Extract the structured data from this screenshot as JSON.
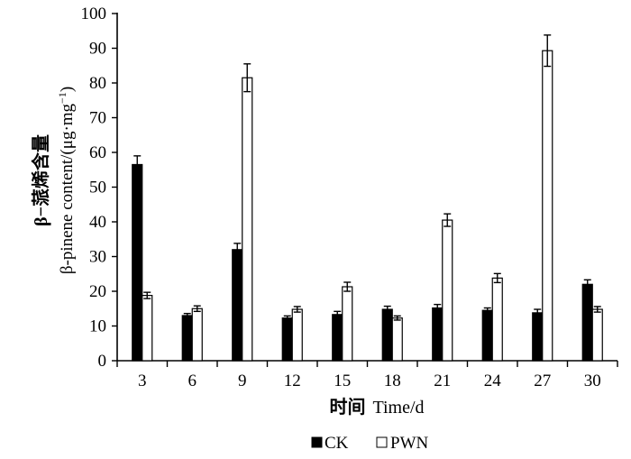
{
  "chart_data": {
    "type": "bar",
    "categories": [
      "3",
      "6",
      "9",
      "12",
      "15",
      "18",
      "21",
      "24",
      "27",
      "30"
    ],
    "series": [
      {
        "name": "CK",
        "color": "#000000",
        "values": [
          56.5,
          13.0,
          32.0,
          12.3,
          13.3,
          14.8,
          15.2,
          14.5,
          13.8,
          22.0
        ],
        "errors": [
          2.5,
          0.6,
          1.8,
          0.6,
          0.9,
          0.9,
          1.0,
          0.7,
          1.0,
          1.3
        ]
      },
      {
        "name": "PWN",
        "color": "#ffffff",
        "values": [
          18.8,
          15.0,
          81.5,
          14.8,
          21.3,
          12.3,
          40.5,
          23.8,
          89.3,
          14.8
        ],
        "errors": [
          0.9,
          0.8,
          4.0,
          0.8,
          1.3,
          0.6,
          1.8,
          1.3,
          4.5,
          0.8
        ]
      }
    ],
    "yticks": [
      "0",
      "10",
      "20",
      "30",
      "40",
      "50",
      "60",
      "70",
      "80",
      "90",
      "100"
    ],
    "ylim": [
      0,
      100
    ],
    "ylabel_cn": "β−蒎烯含量",
    "ylabel_en": "β-pinene content/(μg·mg",
    "ylabel_sup": "−1",
    "ylabel_close": ")",
    "xlabel_cn": "时间",
    "xlabel_en": "Time/d",
    "legend_placement": "bottom-center",
    "grid": false
  }
}
